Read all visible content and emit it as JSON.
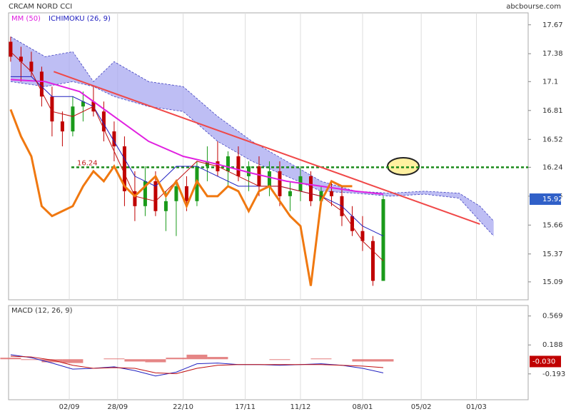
{
  "chart_data": [
    {
      "type": "candlestick",
      "title": "CRCAM NORD CCI",
      "source": "abcbourse.com",
      "legend": [
        "MM (50)",
        "ICHIMOKU (26, 9)"
      ],
      "legend_colors": [
        "#e020e0",
        "#2020c0"
      ],
      "xlim": [
        -0.6,
        150
      ],
      "ylim": [
        14.91,
        17.79
      ],
      "yticks": [
        17.67,
        17.38,
        17.1,
        16.81,
        16.52,
        16.24,
        15.95,
        15.66,
        15.37,
        15.09
      ],
      "colors": {
        "up": "#1a9a1a",
        "down": "#c00000",
        "last": "#3060c8"
      },
      "x": [
        0,
        3,
        6,
        9,
        12,
        15,
        18,
        21,
        24,
        27,
        30,
        33,
        36,
        39,
        42,
        45,
        48,
        51,
        54,
        57,
        60,
        63,
        66,
        69,
        72,
        75,
        78,
        81,
        84,
        87,
        90,
        93,
        96,
        99,
        102,
        105,
        108
      ],
      "open": [
        17.5,
        17.35,
        17.3,
        17.2,
        16.95,
        16.7,
        16.6,
        16.85,
        16.9,
        16.8,
        16.6,
        16.45,
        16.0,
        15.85,
        16.1,
        15.8,
        15.9,
        16.05,
        15.9,
        16.25,
        16.3,
        16.2,
        16.35,
        16.15,
        16.25,
        16.05,
        16.2,
        15.95,
        16.0,
        16.15,
        15.9,
        16.0,
        15.95,
        15.75,
        15.6,
        15.5,
        15.1
      ],
      "high": [
        17.55,
        17.45,
        17.4,
        17.25,
        17.05,
        16.8,
        16.95,
        17.0,
        17.05,
        16.9,
        16.7,
        16.55,
        16.2,
        16.25,
        16.2,
        16.0,
        16.1,
        16.15,
        16.3,
        16.45,
        16.5,
        16.4,
        16.45,
        16.3,
        16.35,
        16.3,
        16.3,
        16.1,
        16.25,
        16.2,
        16.05,
        16.1,
        16.05,
        15.85,
        15.75,
        15.55,
        15.95
      ],
      "low": [
        17.3,
        17.1,
        17.15,
        16.85,
        16.55,
        16.45,
        16.55,
        16.7,
        16.75,
        16.5,
        16.3,
        15.85,
        15.7,
        15.75,
        15.75,
        15.6,
        15.55,
        15.8,
        15.85,
        16.1,
        16.15,
        16.05,
        16.1,
        16.0,
        15.95,
        15.95,
        15.85,
        15.8,
        15.9,
        15.85,
        15.85,
        15.85,
        15.65,
        15.55,
        15.4,
        15.05,
        15.1
      ],
      "close": [
        17.35,
        17.3,
        17.2,
        16.95,
        16.7,
        16.6,
        16.85,
        16.9,
        16.8,
        16.6,
        16.45,
        16.0,
        15.85,
        16.1,
        15.8,
        15.9,
        16.05,
        15.9,
        16.25,
        16.3,
        16.2,
        16.35,
        16.15,
        16.25,
        16.05,
        16.2,
        15.95,
        16.0,
        16.15,
        15.9,
        16.0,
        15.95,
        15.75,
        15.6,
        15.5,
        15.1,
        15.92
      ],
      "cloud": {
        "color": "#a8a8f0",
        "x": [
          0,
          10,
          18,
          24,
          30,
          40,
          50,
          60,
          70,
          80,
          90,
          100,
          110,
          120,
          130,
          136,
          140
        ],
        "upper": [
          17.55,
          17.35,
          17.4,
          17.1,
          17.3,
          17.1,
          17.05,
          16.75,
          16.5,
          16.3,
          16.1,
          16.0,
          15.98,
          16.0,
          15.98,
          15.85,
          15.7
        ],
        "lower": [
          17.1,
          17.05,
          17.1,
          17.05,
          16.95,
          16.85,
          16.8,
          16.5,
          16.3,
          16.15,
          16.0,
          15.98,
          15.95,
          15.97,
          15.93,
          15.7,
          15.55
        ]
      },
      "series": [
        {
          "name": "MM (50)",
          "color": "#e020e0",
          "x": [
            0,
            10,
            20,
            30,
            40,
            50,
            60,
            70,
            80,
            90,
            100,
            108
          ],
          "values": [
            17.12,
            17.1,
            17.0,
            16.75,
            16.5,
            16.35,
            16.27,
            16.18,
            16.1,
            16.05,
            16.0,
            15.97
          ]
        },
        {
          "name": "Kijun",
          "color": "#2020c0",
          "x": [
            0,
            6,
            12,
            18,
            24,
            30,
            36,
            42,
            48,
            54,
            60,
            66,
            72,
            78,
            84,
            90,
            96,
            102,
            108
          ],
          "values": [
            17.15,
            17.15,
            16.95,
            16.95,
            16.85,
            16.5,
            16.15,
            16.05,
            16.25,
            16.25,
            16.15,
            16.05,
            16.05,
            16.05,
            16.0,
            15.95,
            15.85,
            15.65,
            15.55
          ]
        },
        {
          "name": "Tenkan",
          "color": "#c01010",
          "x": [
            0,
            6,
            12,
            18,
            24,
            30,
            36,
            42,
            48,
            54,
            60,
            66,
            72,
            78,
            84,
            90,
            96,
            102,
            108
          ],
          "values": [
            17.4,
            17.2,
            16.8,
            16.75,
            16.85,
            16.4,
            15.95,
            15.9,
            16.1,
            16.3,
            16.25,
            16.15,
            16.05,
            16.05,
            16.0,
            15.95,
            15.8,
            15.5,
            15.3
          ]
        },
        {
          "name": "CCI",
          "color": "#f07810",
          "x": [
            0,
            3,
            6,
            9,
            12,
            15,
            18,
            21,
            24,
            27,
            30,
            33,
            36,
            39,
            42,
            45,
            48,
            51,
            54,
            57,
            60,
            63,
            66,
            69,
            72,
            75,
            78,
            81,
            84,
            87,
            90,
            93,
            96,
            99
          ],
          "values": [
            16.82,
            16.55,
            16.35,
            15.85,
            15.75,
            15.8,
            15.85,
            16.05,
            16.2,
            16.1,
            16.25,
            16.05,
            15.95,
            16.05,
            16.15,
            15.95,
            16.1,
            15.85,
            16.1,
            15.95,
            15.95,
            16.05,
            16.0,
            15.8,
            16.0,
            16.05,
            15.9,
            15.75,
            15.65,
            15.05,
            15.9,
            16.1,
            16.05,
            16.05
          ]
        }
      ],
      "trendline": {
        "color": "#f04848",
        "x": [
          12.5,
          136
        ],
        "y": [
          17.2,
          15.67
        ]
      },
      "level": {
        "value": 16.24,
        "color": "#1a8a1a",
        "label_color": "#c02020"
      }
    },
    {
      "type": "macd",
      "title": "MACD (12, 26, 9)",
      "xlim": [
        -0.6,
        150
      ],
      "ylim": [
        -0.533,
        0.707
      ],
      "yticks": [
        0.569,
        0.188,
        -0.193
      ],
      "xticks": [
        {
          "value": 17,
          "label": "02/09"
        },
        {
          "value": 31,
          "label": "28/09"
        },
        {
          "value": 50,
          "label": "22/10"
        },
        {
          "value": 68,
          "label": "17/11"
        },
        {
          "value": 84,
          "label": "11/12"
        },
        {
          "value": 102,
          "label": "08/01"
        },
        {
          "value": 119,
          "label": "05/02"
        },
        {
          "value": 135,
          "label": "01/03"
        }
      ],
      "x": [
        0,
        6,
        12,
        18,
        24,
        30,
        36,
        42,
        48,
        54,
        60,
        66,
        72,
        78,
        84,
        90,
        96,
        102,
        108
      ],
      "histogram": {
        "color": "#e07070",
        "values": [
          0.02,
          -0.01,
          -0.04,
          -0.05,
          0.0,
          0.01,
          -0.03,
          -0.04,
          0.02,
          0.06,
          0.03,
          0.0,
          0.0,
          -0.01,
          0.0,
          0.01,
          0.0,
          -0.03,
          -0.03
        ],
        "value_labels": [
          null,
          null,
          null,
          null,
          null,
          null,
          null,
          null,
          null,
          null,
          null,
          null,
          null,
          null,
          null,
          null,
          null,
          null,
          "-0.030"
        ],
        "label_color": "#c00000"
      },
      "series": [
        {
          "name": "MACD",
          "color": "#2020c0",
          "values": [
            0.06,
            0.02,
            -0.05,
            -0.13,
            -0.12,
            -0.1,
            -0.15,
            -0.22,
            -0.17,
            -0.06,
            -0.05,
            -0.07,
            -0.07,
            -0.08,
            -0.07,
            -0.06,
            -0.08,
            -0.12,
            -0.18
          ]
        },
        {
          "name": "Signal",
          "color": "#c01010",
          "values": [
            0.04,
            0.03,
            -0.01,
            -0.08,
            -0.12,
            -0.11,
            -0.12,
            -0.18,
            -0.19,
            -0.12,
            -0.08,
            -0.07,
            -0.07,
            -0.07,
            -0.07,
            -0.07,
            -0.08,
            -0.09,
            -0.11
          ]
        }
      ]
    }
  ]
}
